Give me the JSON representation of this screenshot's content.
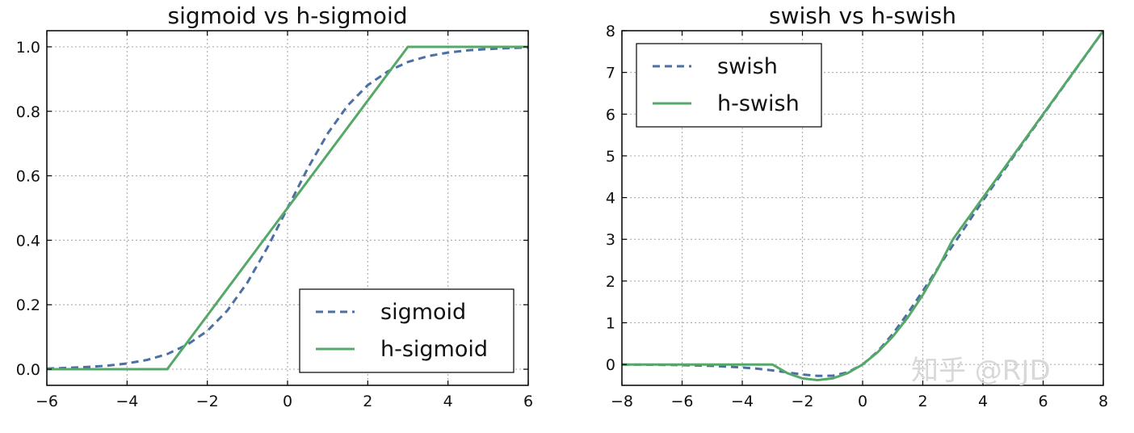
{
  "chart_data": [
    {
      "type": "line",
      "title": "sigmoid vs h-sigmoid",
      "xlabel": "",
      "ylabel": "",
      "xlim": [
        -6,
        6
      ],
      "ylim": [
        -0.05,
        1.05
      ],
      "xticks": [
        -6,
        -4,
        -2,
        0,
        2,
        4,
        6
      ],
      "xtick_labels": [
        "−6",
        "−4",
        "−2",
        "0",
        "2",
        "4",
        "6"
      ],
      "yticks": [
        0.0,
        0.2,
        0.4,
        0.6,
        0.8,
        1.0
      ],
      "ytick_labels": [
        "0.0",
        "0.2",
        "0.4",
        "0.6",
        "0.8",
        "1.0"
      ],
      "grid": true,
      "legend_position": "lower-right",
      "series": [
        {
          "name": "sigmoid",
          "style": "dashed",
          "color": "#4c6fa5",
          "x": [
            -6,
            -5.5,
            -5,
            -4.5,
            -4,
            -3.5,
            -3,
            -2.5,
            -2,
            -1.5,
            -1,
            -0.5,
            0,
            0.5,
            1,
            1.5,
            2,
            2.5,
            3,
            3.5,
            4,
            4.5,
            5,
            5.5,
            6
          ],
          "y": [
            0.002,
            0.004,
            0.007,
            0.011,
            0.018,
            0.029,
            0.047,
            0.076,
            0.119,
            0.182,
            0.269,
            0.378,
            0.5,
            0.622,
            0.731,
            0.818,
            0.881,
            0.924,
            0.953,
            0.971,
            0.982,
            0.989,
            0.993,
            0.996,
            0.998
          ]
        },
        {
          "name": "h-sigmoid",
          "style": "solid",
          "color": "#55a868",
          "x": [
            -6,
            -3,
            3,
            6
          ],
          "y": [
            0,
            0,
            1,
            1
          ]
        }
      ]
    },
    {
      "type": "line",
      "title": "swish vs h-swish",
      "xlabel": "",
      "ylabel": "",
      "xlim": [
        -8,
        8
      ],
      "ylim": [
        -0.5,
        8
      ],
      "xticks": [
        -8,
        -6,
        -4,
        -2,
        0,
        2,
        4,
        6,
        8
      ],
      "xtick_labels": [
        "−8",
        "−6",
        "−4",
        "−2",
        "0",
        "2",
        "4",
        "6",
        "8"
      ],
      "yticks": [
        0,
        1,
        2,
        3,
        4,
        5,
        6,
        7,
        8
      ],
      "ytick_labels": [
        "0",
        "1",
        "2",
        "3",
        "4",
        "5",
        "6",
        "7",
        "8"
      ],
      "grid": true,
      "legend_position": "upper-left",
      "series": [
        {
          "name": "swish",
          "style": "dashed",
          "color": "#4c6fa5",
          "x": [
            -8,
            -7,
            -6,
            -5,
            -4,
            -3.5,
            -3,
            -2.5,
            -2,
            -1.5,
            -1,
            -0.5,
            0,
            0.5,
            1,
            1.5,
            2,
            2.5,
            3,
            4,
            5,
            6,
            7,
            8
          ],
          "y": [
            -0.003,
            -0.006,
            -0.015,
            -0.033,
            -0.072,
            -0.102,
            -0.142,
            -0.19,
            -0.238,
            -0.274,
            -0.269,
            -0.189,
            0,
            0.311,
            0.731,
            1.227,
            1.762,
            2.31,
            2.858,
            3.928,
            4.967,
            5.985,
            6.994,
            7.997
          ]
        },
        {
          "name": "h-swish",
          "style": "solid",
          "color": "#55a868",
          "x": [
            -8,
            -3,
            -2.5,
            -2,
            -1.5,
            -1,
            -0.5,
            0,
            0.5,
            1,
            1.5,
            2,
            2.5,
            3,
            8
          ],
          "y": [
            0,
            0,
            -0.208,
            -0.333,
            -0.375,
            -0.333,
            -0.208,
            0,
            0.292,
            0.667,
            1.125,
            1.667,
            2.292,
            3,
            8
          ]
        }
      ]
    }
  ],
  "watermark": "知乎 @RJD"
}
